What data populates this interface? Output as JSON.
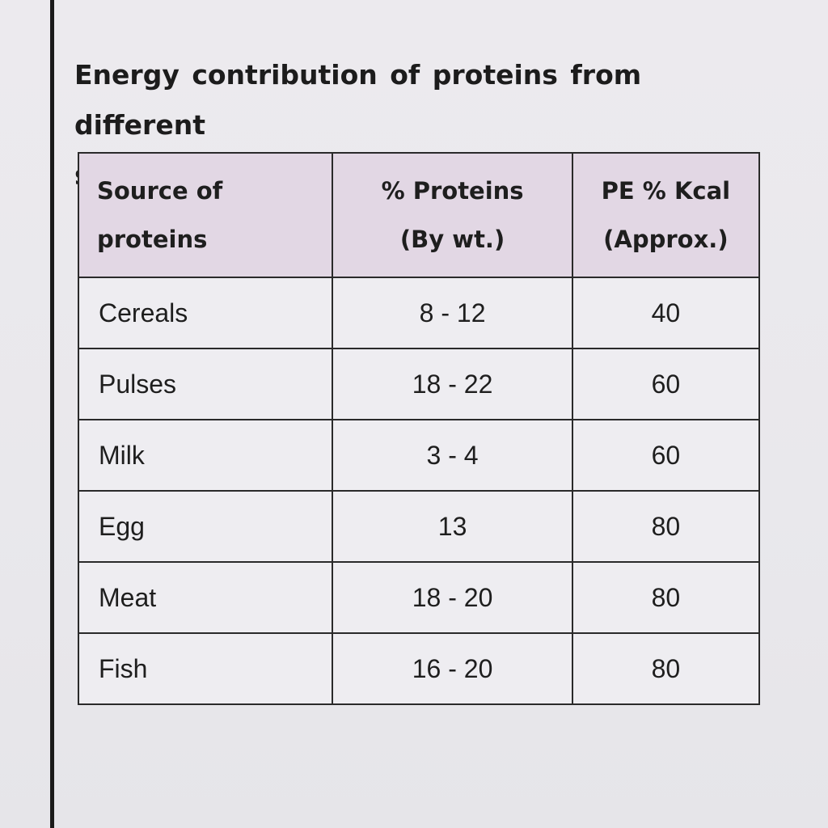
{
  "title": {
    "line1": "Energy contribution of proteins from different",
    "line2": "sources"
  },
  "table": {
    "headers": [
      {
        "line1": "Source of",
        "line2": "proteins"
      },
      {
        "line1": "% Proteins",
        "line2": "(By wt.)"
      },
      {
        "line1": "PE % Kcal",
        "line2": "(Approx.)"
      }
    ],
    "rows": [
      {
        "source": "Cereals",
        "proteins": "8 - 12",
        "pe": "40"
      },
      {
        "source": "Pulses",
        "proteins": "18 - 22",
        "pe": "60"
      },
      {
        "source": "Milk",
        "proteins": "3 - 4",
        "pe": "60"
      },
      {
        "source": "Egg",
        "proteins": "13",
        "pe": "80"
      },
      {
        "source": "Meat",
        "proteins": "18 - 20",
        "pe": "80"
      },
      {
        "source": "Fish",
        "proteins": "16 - 20",
        "pe": "80"
      }
    ]
  }
}
